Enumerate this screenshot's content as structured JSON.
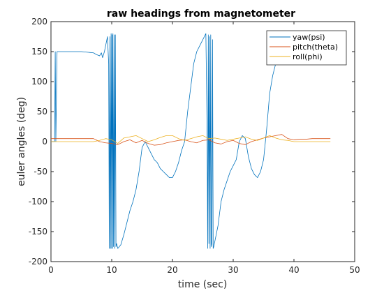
{
  "chart_data": {
    "type": "line",
    "title": "raw headings from magnetometer",
    "xlabel": "time (sec)",
    "ylabel": "euler angles (deg)",
    "xlim": [
      0,
      50
    ],
    "ylim": [
      -200,
      200
    ],
    "xticks": [
      0,
      10,
      20,
      30,
      40,
      50
    ],
    "yticks": [
      -200,
      -150,
      -100,
      -50,
      0,
      50,
      100,
      150,
      200
    ],
    "grid": false,
    "legend_position": "top-right",
    "series": [
      {
        "name": "yaw(psi)",
        "color": "#0072BD",
        "x": [
          0,
          0.6,
          0.7,
          0.8,
          1,
          3,
          5,
          7,
          7.5,
          8,
          8.3,
          8.5,
          8.8,
          9,
          9.3,
          9.5,
          9.6,
          9.7,
          9.8,
          9.9,
          10.0,
          10.05,
          10.1,
          10.2,
          10.3,
          10.4,
          10.5,
          10.6,
          10.7,
          10.8,
          11,
          11.5,
          12,
          12.5,
          13,
          13.5,
          14,
          14.5,
          15,
          15.5,
          16,
          16.5,
          17,
          17.5,
          18,
          18.5,
          19,
          19.5,
          20,
          20.5,
          21,
          21.5,
          22,
          22.5,
          23,
          23.5,
          24,
          24.5,
          25,
          25.5,
          25.7,
          25.8,
          25.9,
          26.0,
          26.1,
          26.2,
          26.3,
          26.4,
          26.5,
          26.6,
          26.7,
          26.8,
          27,
          27.5,
          28,
          28.5,
          29,
          29.5,
          30,
          30.5,
          31,
          31.5,
          32,
          32.5,
          33,
          33.5,
          34,
          34.5,
          35,
          35.5,
          36,
          36.5,
          37,
          37.5,
          37.8,
          38,
          38.5,
          39,
          39.5,
          40,
          40.3,
          40.5,
          40.7,
          41,
          41.2,
          41.5,
          42,
          43,
          44,
          45,
          46
        ],
        "y": [
          0,
          0,
          150,
          0,
          150,
          150,
          150,
          148,
          145,
          143,
          148,
          140,
          150,
          160,
          175,
          130,
          -178,
          175,
          -178,
          180,
          -178,
          178,
          -178,
          180,
          -175,
          178,
          -178,
          178,
          -175,
          -170,
          -178,
          -172,
          -155,
          -135,
          -115,
          -100,
          -80,
          -50,
          -10,
          0,
          -10,
          -20,
          -30,
          -35,
          -45,
          -50,
          -55,
          -60,
          -60,
          -50,
          -35,
          -15,
          0,
          50,
          90,
          130,
          150,
          160,
          170,
          180,
          20,
          -178,
          178,
          -170,
          175,
          -178,
          178,
          -175,
          -170,
          170,
          -178,
          -175,
          -165,
          -140,
          -100,
          -80,
          -65,
          -50,
          -40,
          -30,
          0,
          10,
          5,
          -25,
          -45,
          -55,
          -60,
          -50,
          -30,
          20,
          80,
          110,
          130,
          145,
          150,
          165,
          160,
          158,
          160,
          165,
          162,
          160,
          155,
          158,
          160,
          158,
          155,
          150,
          150,
          150,
          150
        ]
      },
      {
        "name": "pitch(theta)",
        "color": "#D95319",
        "x": [
          0,
          7,
          8,
          9,
          10,
          11,
          12,
          13,
          14,
          15,
          16,
          17,
          18,
          19,
          20,
          21,
          22,
          23,
          24,
          25,
          26,
          27,
          28,
          29,
          30,
          31,
          32,
          33,
          34,
          35,
          36,
          37,
          38,
          39,
          40,
          41,
          42,
          43,
          44,
          45,
          46
        ],
        "y": [
          5,
          5,
          0,
          -2,
          -3,
          -5,
          0,
          3,
          -2,
          2,
          -3,
          -6,
          -5,
          -2,
          0,
          2,
          3,
          0,
          -2,
          2,
          3,
          -2,
          -4,
          0,
          2,
          -3,
          -5,
          0,
          3,
          6,
          8,
          10,
          12,
          5,
          3,
          4,
          4,
          5,
          5,
          5,
          5
        ]
      },
      {
        "name": "roll(phi)",
        "color": "#EDB120",
        "x": [
          0,
          7,
          8,
          9,
          10,
          11,
          12,
          13,
          14,
          15,
          16,
          17,
          18,
          19,
          20,
          21,
          22,
          23,
          24,
          25,
          26,
          27,
          28,
          29,
          30,
          31,
          32,
          33,
          34,
          35,
          36,
          37,
          38,
          39,
          40,
          41,
          42,
          43,
          44,
          45,
          46
        ],
        "y": [
          0,
          0,
          2,
          5,
          3,
          -3,
          6,
          8,
          10,
          5,
          0,
          3,
          7,
          10,
          10,
          5,
          2,
          5,
          8,
          10,
          5,
          6,
          4,
          2,
          4,
          6,
          8,
          4,
          2,
          6,
          10,
          6,
          3,
          2,
          0,
          0,
          0,
          0,
          0,
          0,
          0
        ]
      }
    ]
  }
}
